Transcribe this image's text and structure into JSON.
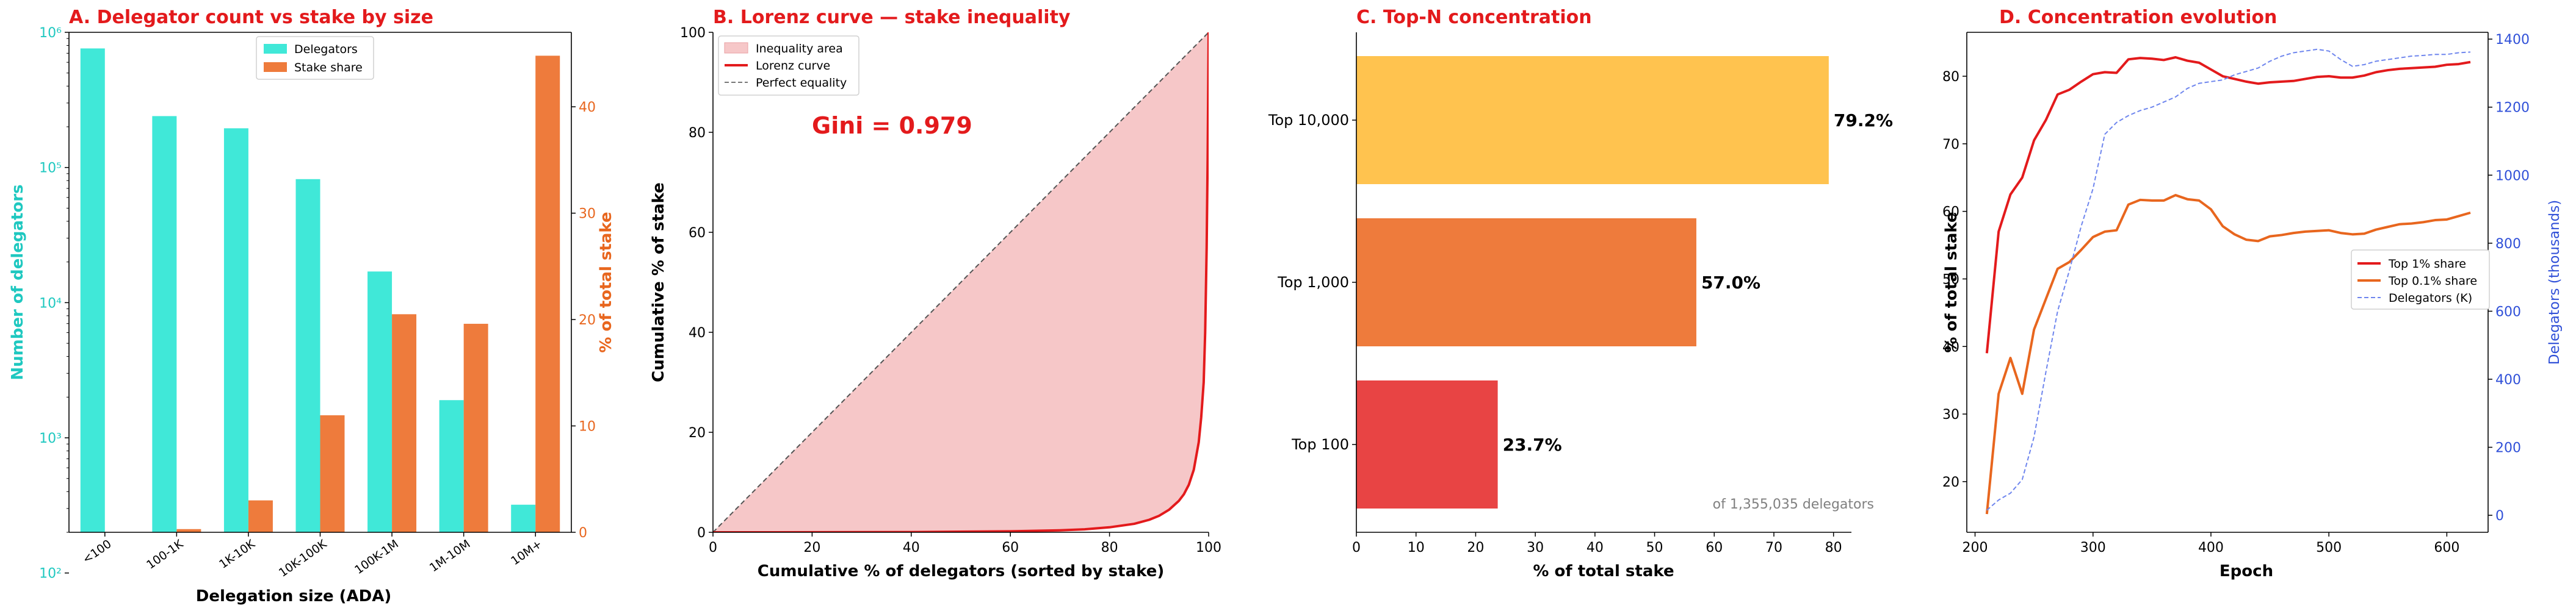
{
  "colors": {
    "title": "#e31a1c",
    "cyan": "#1fc8c0",
    "cyan_bar": "#40e8d8",
    "orange": "#ee7b3c",
    "orange_axis": "#e8661e",
    "blue_axis": "#3050d8",
    "lorenz": "#e31a1c",
    "fill": "#f6c7c8",
    "bar_top10000": "#ffc34f",
    "bar_top1000": "#ee7b3c",
    "bar_top100": "#e84444",
    "dark_line": "#e31a1c",
    "top01_line": "#e8661e",
    "delegators_line": "#6f86ee"
  },
  "chart_data": [
    {
      "type": "bar",
      "title": "A. Delegator count vs stake by size",
      "xlabel": "Delegation size (ADA)",
      "ylabel": "Number of delegators",
      "y2label": "% of total stake",
      "categories": [
        "<100",
        "100-1K",
        "1K-10K",
        "10K-100K",
        "100K-1M",
        "1M-10M",
        "10M+"
      ],
      "y_scale": "log",
      "ylim": [
        200,
        1000000
      ],
      "y_ticks": [
        "10²",
        "10³",
        "10⁴",
        "10⁵",
        "10⁶"
      ],
      "y2lim": [
        0,
        47
      ],
      "y2_ticks": [
        0,
        10,
        20,
        30,
        40
      ],
      "legend_position": "top-center",
      "series": [
        {
          "name": "Delegators",
          "axis": "left",
          "values": [
            760000,
            240000,
            195000,
            82000,
            17000,
            1900,
            320
          ]
        },
        {
          "name": "Stake share",
          "axis": "right",
          "values": [
            0.03,
            0.3,
            3.0,
            11.0,
            20.5,
            19.6,
            44.8
          ]
        }
      ]
    },
    {
      "type": "area",
      "title": "B. Lorenz curve — stake inequality",
      "xlabel": "Cumulative % of delegators (sorted by stake)",
      "ylabel": "Cumulative % of stake",
      "xlim": [
        0,
        100
      ],
      "ylim": [
        0,
        100
      ],
      "x_ticks": [
        0,
        20,
        40,
        60,
        80,
        100
      ],
      "y_ticks": [
        0,
        20,
        40,
        60,
        80,
        100
      ],
      "annotation": "Gini = 0.979",
      "legend_position": "top-left",
      "series": [
        {
          "name": "Inequality area"
        },
        {
          "name": "Lorenz curve",
          "x": [
            0,
            20,
            40,
            60,
            70,
            75,
            80,
            85,
            88,
            90,
            92,
            94,
            95,
            96,
            97,
            98,
            98.5,
            99,
            99.3,
            99.6,
            99.8,
            100
          ],
          "y": [
            0,
            0.01,
            0.05,
            0.2,
            0.4,
            0.6,
            1.0,
            1.7,
            2.5,
            3.3,
            4.5,
            6.3,
            7.6,
            9.5,
            12.5,
            18,
            23,
            30,
            40,
            57,
            75,
            100
          ]
        },
        {
          "name": "Perfect equality",
          "x": [
            0,
            100
          ],
          "y": [
            0,
            100
          ]
        }
      ]
    },
    {
      "type": "bar",
      "orientation": "horizontal",
      "title": "C. Top-N concentration",
      "xlabel": "% of total stake",
      "xlim": [
        0,
        83
      ],
      "x_ticks": [
        0,
        10,
        20,
        30,
        40,
        50,
        60,
        70,
        80
      ],
      "categories": [
        "Top 10,000",
        "Top 1,000",
        "Top 100"
      ],
      "values": [
        79.2,
        57.0,
        23.7
      ],
      "data_labels": [
        "79.2%",
        "57.0%",
        "23.7%"
      ],
      "footnote": "of 1,355,035 delegators"
    },
    {
      "type": "line",
      "title": "D. Concentration evolution",
      "xlabel": "Epoch",
      "ylabel": "% of total stake",
      "y2label": "Delegators (thousands)",
      "xlim": [
        193,
        635
      ],
      "ylim": [
        12.5,
        86.5
      ],
      "y2lim": [
        -50,
        1420
      ],
      "x_ticks": [
        200,
        300,
        400,
        500,
        600
      ],
      "y_ticks": [
        20,
        30,
        40,
        50,
        60,
        70,
        80
      ],
      "y2_ticks": [
        0,
        200,
        400,
        600,
        800,
        1000,
        1200,
        1400
      ],
      "legend_position": "center-right",
      "series": [
        {
          "name": "Top 1% share",
          "axis": "left",
          "x": [
            210,
            220,
            230,
            240,
            250,
            260,
            270,
            280,
            290,
            300,
            310,
            320,
            330,
            340,
            350,
            360,
            370,
            380,
            390,
            400,
            410,
            420,
            430,
            440,
            450,
            460,
            470,
            480,
            490,
            500,
            510,
            520,
            530,
            540,
            550,
            560,
            570,
            580,
            590,
            600,
            610,
            620
          ],
          "values": [
            39,
            57,
            62.5,
            65,
            70.5,
            73.5,
            77.3,
            78,
            79.2,
            80.3,
            80.6,
            80.5,
            82.5,
            82.7,
            82.6,
            82.4,
            82.8,
            82.3,
            82,
            81,
            80,
            79.6,
            79.2,
            78.9,
            79.1,
            79.2,
            79.3,
            79.6,
            79.9,
            80,
            79.8,
            79.8,
            80.1,
            80.6,
            80.9,
            81.1,
            81.2,
            81.3,
            81.4,
            81.7,
            81.8,
            82.1
          ]
        },
        {
          "name": "Top 0.1% share",
          "axis": "left",
          "x": [
            210,
            220,
            230,
            240,
            250,
            260,
            270,
            280,
            290,
            300,
            310,
            320,
            330,
            340,
            350,
            360,
            370,
            380,
            390,
            400,
            410,
            420,
            430,
            440,
            450,
            460,
            470,
            480,
            490,
            500,
            510,
            520,
            530,
            540,
            550,
            560,
            570,
            580,
            590,
            600,
            610,
            620
          ],
          "values": [
            15.2,
            33,
            38.3,
            33,
            42.5,
            47,
            51.5,
            52.5,
            54.3,
            56.2,
            57,
            57.2,
            61,
            61.7,
            61.6,
            61.6,
            62.4,
            61.8,
            61.6,
            60.3,
            57.8,
            56.6,
            55.8,
            55.6,
            56.3,
            56.5,
            56.8,
            57,
            57.1,
            57.2,
            56.8,
            56.6,
            56.7,
            57.3,
            57.7,
            58.1,
            58.2,
            58.4,
            58.7,
            58.8,
            59.3,
            59.8
          ]
        },
        {
          "name": "Delegators (K)",
          "axis": "right",
          "x": [
            210,
            220,
            230,
            240,
            250,
            260,
            270,
            280,
            290,
            300,
            310,
            320,
            330,
            340,
            350,
            360,
            370,
            380,
            390,
            400,
            410,
            420,
            430,
            440,
            450,
            460,
            470,
            480,
            490,
            500,
            510,
            520,
            530,
            540,
            550,
            560,
            570,
            580,
            590,
            600,
            610,
            620
          ],
          "values": [
            15,
            45,
            65,
            105,
            230,
            420,
            600,
            720,
            850,
            960,
            1120,
            1155,
            1175,
            1190,
            1200,
            1215,
            1230,
            1255,
            1270,
            1275,
            1280,
            1295,
            1305,
            1315,
            1335,
            1350,
            1360,
            1365,
            1370,
            1365,
            1340,
            1320,
            1325,
            1335,
            1340,
            1345,
            1350,
            1352,
            1355,
            1355,
            1360,
            1362
          ]
        }
      ]
    }
  ]
}
